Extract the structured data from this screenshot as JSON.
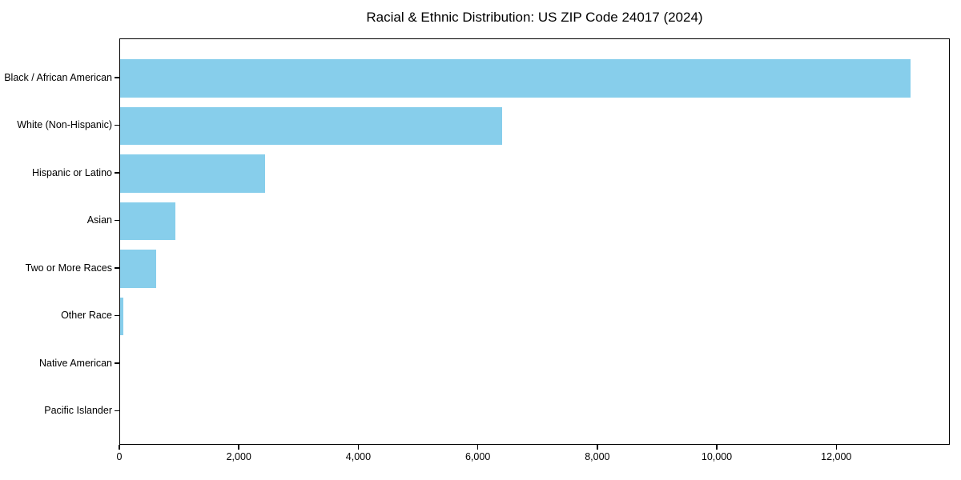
{
  "chart_data": {
    "type": "bar",
    "orientation": "horizontal",
    "title": "Racial & Ethnic Distribution: US ZIP Code 24017 (2024)",
    "categories": [
      "Black / African American",
      "White (Non-Hispanic)",
      "Hispanic or Latino",
      "Asian",
      "Two or More Races",
      "Other Race",
      "Native American",
      "Pacific Islander"
    ],
    "values": [
      13230,
      6400,
      2420,
      920,
      600,
      60,
      0,
      0
    ],
    "xlabel": "",
    "ylabel": "",
    "xlim": [
      0,
      13900
    ],
    "xticks": [
      0,
      2000,
      4000,
      6000,
      8000,
      10000,
      12000
    ],
    "xtick_labels": [
      "0",
      "2,000",
      "4,000",
      "6,000",
      "8,000",
      "10,000",
      "12,000"
    ],
    "grid": false,
    "legend": null,
    "bar_color": "#87CEEB",
    "axis_color": "#000000",
    "background": "#FFFFFF"
  }
}
